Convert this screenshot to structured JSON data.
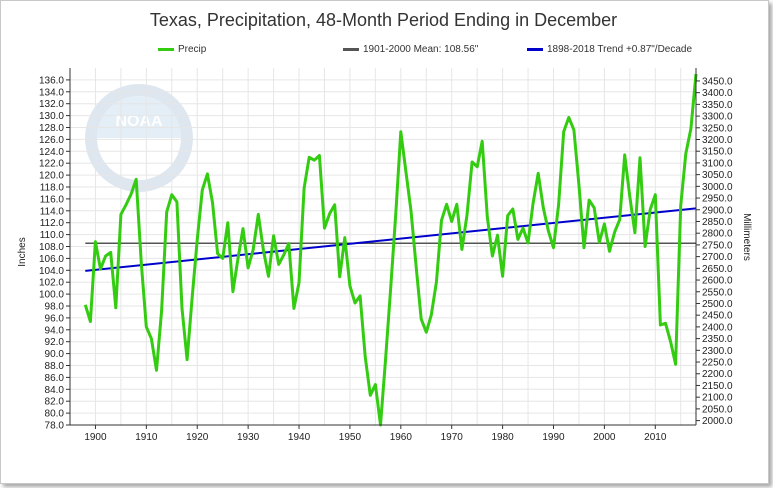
{
  "chart_data": {
    "type": "line",
    "title": "Texas, Precipitation, 48-Month Period Ending in December",
    "ylabel": "Inches",
    "y2label": "Millimeters",
    "ylim": [
      78,
      138
    ],
    "y2lim": [
      1981.2,
      3505.2
    ],
    "xlim": [
      1895,
      2018
    ],
    "xticks": [
      1900,
      1910,
      1920,
      1930,
      1940,
      1950,
      1960,
      1970,
      1980,
      1990,
      2000,
      2010
    ],
    "yticks": [
      "78.0",
      "80.0",
      "82.0",
      "84.0",
      "86.0",
      "88.0",
      "90.0",
      "92.0",
      "94.0",
      "96.0",
      "98.0",
      "100.0",
      "102.0",
      "104.0",
      "106.0",
      "108.0",
      "110.0",
      "112.0",
      "114.0",
      "116.0",
      "118.0",
      "120.0",
      "122.0",
      "124.0",
      "126.0",
      "128.0",
      "130.0",
      "132.0",
      "134.0",
      "136.0"
    ],
    "y2ticks": [
      "2000.0",
      "2050.0",
      "2100.0",
      "2150.0",
      "2200.0",
      "2250.0",
      "2300.0",
      "2350.0",
      "2400.0",
      "2450.0",
      "2500.0",
      "2550.0",
      "2600.0",
      "2650.0",
      "2700.0",
      "2750.0",
      "2800.0",
      "2850.0",
      "2900.0",
      "2950.0",
      "3000.0",
      "3050.0",
      "3100.0",
      "3150.0",
      "3200.0",
      "3250.0",
      "3300.0",
      "3350.0",
      "3400.0",
      "3450.0"
    ],
    "grid": true,
    "legend_position": "top",
    "series": [
      {
        "name": "Precip",
        "color": "#33cc11",
        "x": [
          1898,
          1899,
          1900,
          1901,
          1902,
          1903,
          1904,
          1905,
          1906,
          1907,
          1908,
          1909,
          1910,
          1911,
          1912,
          1913,
          1914,
          1915,
          1916,
          1917,
          1918,
          1919,
          1920,
          1921,
          1922,
          1923,
          1924,
          1925,
          1926,
          1927,
          1928,
          1929,
          1930,
          1931,
          1932,
          1933,
          1934,
          1935,
          1936,
          1937,
          1938,
          1939,
          1940,
          1941,
          1942,
          1943,
          1944,
          1945,
          1946,
          1947,
          1948,
          1949,
          1950,
          1951,
          1952,
          1953,
          1954,
          1955,
          1956,
          1957,
          1958,
          1959,
          1960,
          1961,
          1962,
          1963,
          1964,
          1965,
          1966,
          1967,
          1968,
          1969,
          1970,
          1971,
          1972,
          1973,
          1974,
          1975,
          1976,
          1977,
          1978,
          1979,
          1980,
          1981,
          1982,
          1983,
          1984,
          1985,
          1986,
          1987,
          1988,
          1989,
          1990,
          1991,
          1992,
          1993,
          1994,
          1995,
          1996,
          1997,
          1998,
          1999,
          2000,
          2001,
          2002,
          2003,
          2004,
          2005,
          2006,
          2007,
          2008,
          2009,
          2010,
          2011,
          2012,
          2013,
          2014,
          2015,
          2016,
          2017,
          2018
        ],
        "values": [
          98.2,
          95.4,
          108.8,
          104.2,
          106.4,
          107.0,
          97.7,
          113.4,
          115.0,
          116.8,
          119.3,
          105.2,
          94.5,
          92.5,
          87.2,
          97.2,
          113.8,
          116.7,
          115.5,
          97.6,
          89.0,
          99.3,
          109.1,
          117.5,
          120.2,
          115.4,
          106.8,
          106.0,
          112.0,
          100.4,
          106.0,
          111.0,
          104.4,
          107.5,
          113.4,
          107.4,
          103.0,
          109.8,
          105.0,
          106.6,
          108.5,
          97.6,
          101.9,
          117.8,
          123.0,
          122.5,
          123.3,
          111.1,
          113.5,
          115.0,
          102.9,
          109.5,
          101.4,
          98.5,
          99.7,
          89.5,
          83.0,
          84.8,
          78.0,
          88.9,
          100.8,
          113.3,
          127.3,
          120.6,
          114.0,
          104.7,
          95.8,
          93.6,
          96.5,
          102.0,
          112.4,
          115.1,
          112.2,
          115.1,
          107.5,
          113.3,
          122.2,
          121.4,
          125.7,
          113.0,
          106.4,
          109.9,
          103.0,
          113.2,
          114.3,
          109.2,
          111.1,
          108.6,
          115.3,
          120.3,
          114.5,
          110.6,
          107.8,
          115.0,
          127.3,
          129.7,
          127.6,
          118.4,
          107.8,
          115.8,
          114.5,
          108.7,
          111.8,
          107.2,
          110.4,
          112.5,
          123.4,
          116.4,
          110.3,
          122.9,
          108.0,
          114.2,
          116.7,
          94.8,
          95.1,
          92.0,
          88.2,
          114.8,
          123.6,
          127.8,
          137.0
        ]
      },
      {
        "name": "1901-2000 Mean: 108.56\"",
        "color": "#555555",
        "x": [
          1898,
          2018
        ],
        "values": [
          108.56,
          108.56
        ]
      },
      {
        "name": "1898-2018 Trend +0.87\"/Decade",
        "color": "#0000cc",
        "x": [
          1898,
          2018
        ],
        "values": [
          103.9,
          114.4
        ]
      }
    ]
  }
}
